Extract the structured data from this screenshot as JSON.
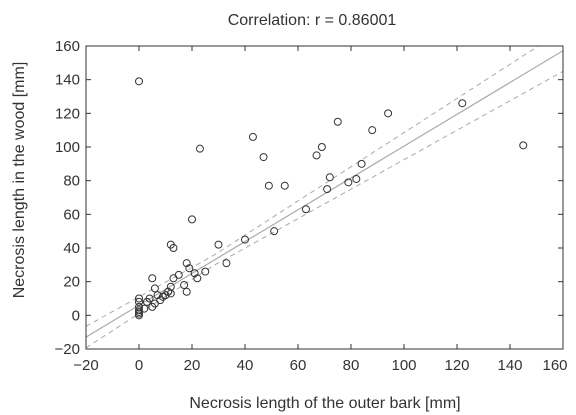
{
  "chart_data": {
    "type": "scatter",
    "title": "Correlation: r = 0.86001",
    "xlabel": "Necrosis length of the outer bark [mm]",
    "ylabel": "Necrosis length in the wood [mm]",
    "xlim": [
      -20,
      160
    ],
    "ylim": [
      -20,
      160
    ],
    "xticks": [
      -20,
      0,
      20,
      40,
      60,
      80,
      100,
      120,
      140,
      160
    ],
    "yticks": [
      -20,
      0,
      20,
      40,
      60,
      80,
      100,
      120,
      140,
      160
    ],
    "xtick_labels": [
      "−20",
      "0",
      "20",
      "40",
      "60",
      "80",
      "100",
      "120",
      "140",
      "160"
    ],
    "ytick_labels": [
      "−20",
      "0",
      "20",
      "40",
      "60",
      "80",
      "100",
      "120",
      "140",
      "160"
    ],
    "grid": false,
    "legend": "none",
    "marker": "open-circle",
    "colors": {
      "points": "#333333",
      "fit_line": "#aaaaaa",
      "confidence_band": "#aaaaaa",
      "axes": "#333333"
    },
    "points": [
      [
        0,
        139
      ],
      [
        0,
        0
      ],
      [
        0,
        1
      ],
      [
        0,
        2
      ],
      [
        0,
        3
      ],
      [
        0,
        5
      ],
      [
        0,
        8
      ],
      [
        0,
        10
      ],
      [
        2,
        4
      ],
      [
        3,
        8
      ],
      [
        4,
        10
      ],
      [
        5,
        5
      ],
      [
        5,
        22
      ],
      [
        6,
        7
      ],
      [
        6,
        16
      ],
      [
        7,
        12
      ],
      [
        8,
        9
      ],
      [
        9,
        11
      ],
      [
        10,
        12
      ],
      [
        11,
        14
      ],
      [
        12,
        13
      ],
      [
        12,
        17
      ],
      [
        12,
        42
      ],
      [
        13,
        40
      ],
      [
        13,
        22
      ],
      [
        15,
        24
      ],
      [
        17,
        18
      ],
      [
        18,
        14
      ],
      [
        18,
        31
      ],
      [
        19,
        28
      ],
      [
        20,
        57
      ],
      [
        21,
        25
      ],
      [
        22,
        22
      ],
      [
        23,
        99
      ],
      [
        25,
        26
      ],
      [
        30,
        42
      ],
      [
        33,
        31
      ],
      [
        40,
        45
      ],
      [
        43,
        106
      ],
      [
        47,
        94
      ],
      [
        49,
        77
      ],
      [
        51,
        50
      ],
      [
        55,
        77
      ],
      [
        63,
        63
      ],
      [
        67,
        95
      ],
      [
        69,
        100
      ],
      [
        71,
        75
      ],
      [
        72,
        82
      ],
      [
        75,
        115
      ],
      [
        79,
        79
      ],
      [
        82,
        81
      ],
      [
        84,
        90
      ],
      [
        88,
        110
      ],
      [
        94,
        120
      ],
      [
        122,
        126
      ],
      [
        145,
        101
      ]
    ],
    "fit_line": {
      "slope": 0.945,
      "intercept": 6.0
    },
    "confidence_band": {
      "half_width_at_mean": 3.0,
      "x_mean": 28.0,
      "spread_factor": 0.07
    }
  }
}
